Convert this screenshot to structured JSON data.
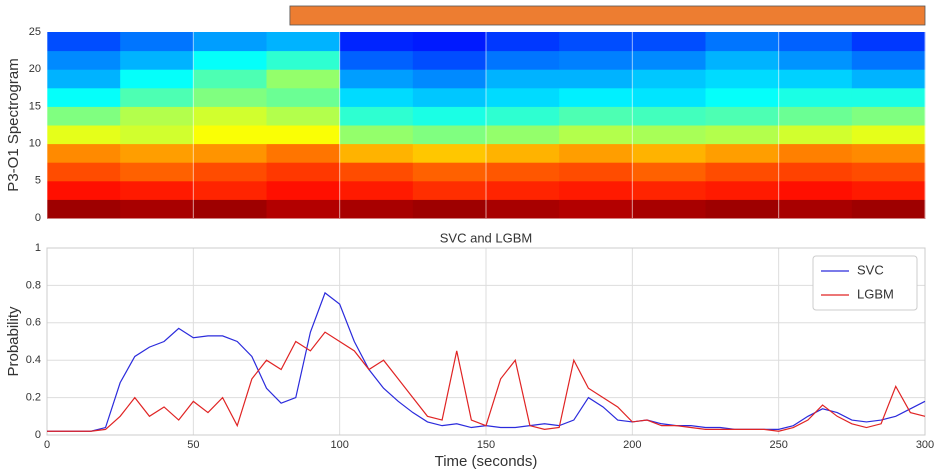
{
  "chart_data": [
    {
      "type": "heatmap",
      "ylabel": "P3-O1 Spectrogram",
      "colormap": "jet",
      "xlim": [
        0,
        300
      ],
      "ylim": [
        0,
        25
      ],
      "yticks": [
        0,
        5,
        10,
        15,
        20,
        25
      ],
      "xticks": [
        0,
        50,
        100,
        150,
        200,
        250,
        300
      ],
      "show_xticklabels": false,
      "grid": true,
      "highlight": {
        "xlim": [
          83,
          300
        ],
        "color": "#ed7d31"
      },
      "z": [
        [
          0.97,
          0.96,
          0.97,
          0.95,
          0.96,
          0.97,
          0.96,
          0.95,
          0.96,
          0.97,
          0.96,
          0.97
        ],
        [
          0.86,
          0.85,
          0.84,
          0.86,
          0.85,
          0.83,
          0.84,
          0.85,
          0.84,
          0.85,
          0.86,
          0.85
        ],
        [
          0.8,
          0.78,
          0.8,
          0.82,
          0.8,
          0.78,
          0.79,
          0.8,
          0.78,
          0.8,
          0.81,
          0.8
        ],
        [
          0.74,
          0.72,
          0.73,
          0.76,
          0.7,
          0.68,
          0.7,
          0.72,
          0.7,
          0.72,
          0.75,
          0.74
        ],
        [
          0.6,
          0.58,
          0.62,
          0.62,
          0.52,
          0.5,
          0.52,
          0.55,
          0.54,
          0.55,
          0.58,
          0.6
        ],
        [
          0.5,
          0.55,
          0.58,
          0.55,
          0.42,
          0.4,
          0.42,
          0.45,
          0.44,
          0.45,
          0.48,
          0.5
        ],
        [
          0.38,
          0.45,
          0.5,
          0.48,
          0.34,
          0.32,
          0.34,
          0.36,
          0.35,
          0.38,
          0.4,
          0.4
        ],
        [
          0.3,
          0.38,
          0.45,
          0.52,
          0.28,
          0.26,
          0.3,
          0.3,
          0.32,
          0.34,
          0.33,
          0.3
        ],
        [
          0.26,
          0.3,
          0.38,
          0.42,
          0.22,
          0.2,
          0.24,
          0.25,
          0.26,
          0.3,
          0.27,
          0.24
        ],
        [
          0.2,
          0.24,
          0.28,
          0.3,
          0.16,
          0.15,
          0.18,
          0.2,
          0.2,
          0.24,
          0.22,
          0.18
        ]
      ]
    },
    {
      "type": "line",
      "title": "SVC and LGBM",
      "xlabel": "Time (seconds)",
      "ylabel": "Probability",
      "xlim": [
        0,
        300
      ],
      "ylim": [
        0,
        1
      ],
      "xticks": [
        0,
        50,
        100,
        150,
        200,
        250,
        300
      ],
      "yticks": [
        0.0,
        0.2,
        0.4,
        0.6,
        0.8,
        1.0
      ],
      "show_xticklabels": true,
      "grid": true,
      "legend": "upper right",
      "x": [
        0,
        5,
        10,
        15,
        20,
        25,
        30,
        35,
        40,
        45,
        50,
        55,
        60,
        65,
        70,
        75,
        80,
        85,
        90,
        95,
        100,
        105,
        110,
        115,
        120,
        125,
        130,
        135,
        140,
        145,
        150,
        155,
        160,
        165,
        170,
        175,
        180,
        185,
        190,
        195,
        200,
        205,
        210,
        215,
        220,
        225,
        230,
        235,
        240,
        245,
        250,
        255,
        260,
        265,
        270,
        275,
        280,
        285,
        290,
        295,
        300
      ],
      "series": [
        {
          "name": "SVC",
          "color": "#2b2bdc",
          "values": [
            0.02,
            0.02,
            0.02,
            0.02,
            0.04,
            0.28,
            0.42,
            0.47,
            0.5,
            0.57,
            0.52,
            0.53,
            0.53,
            0.5,
            0.42,
            0.25,
            0.17,
            0.2,
            0.55,
            0.76,
            0.7,
            0.5,
            0.35,
            0.25,
            0.18,
            0.12,
            0.07,
            0.05,
            0.06,
            0.04,
            0.05,
            0.04,
            0.04,
            0.05,
            0.06,
            0.05,
            0.08,
            0.2,
            0.15,
            0.08,
            0.07,
            0.08,
            0.06,
            0.05,
            0.05,
            0.04,
            0.04,
            0.03,
            0.03,
            0.03,
            0.03,
            0.05,
            0.1,
            0.14,
            0.12,
            0.08,
            0.07,
            0.08,
            0.1,
            0.14,
            0.18
          ]
        },
        {
          "name": "LGBM",
          "color": "#e02424",
          "values": [
            0.02,
            0.02,
            0.02,
            0.02,
            0.03,
            0.1,
            0.2,
            0.1,
            0.15,
            0.08,
            0.18,
            0.12,
            0.2,
            0.05,
            0.3,
            0.4,
            0.35,
            0.5,
            0.45,
            0.55,
            0.5,
            0.45,
            0.35,
            0.4,
            0.3,
            0.2,
            0.1,
            0.08,
            0.45,
            0.08,
            0.05,
            0.3,
            0.4,
            0.05,
            0.03,
            0.04,
            0.4,
            0.25,
            0.2,
            0.15,
            0.07,
            0.08,
            0.05,
            0.05,
            0.04,
            0.03,
            0.03,
            0.03,
            0.03,
            0.03,
            0.02,
            0.04,
            0.08,
            0.16,
            0.1,
            0.06,
            0.04,
            0.06,
            0.26,
            0.12,
            0.1
          ]
        }
      ]
    }
  ]
}
